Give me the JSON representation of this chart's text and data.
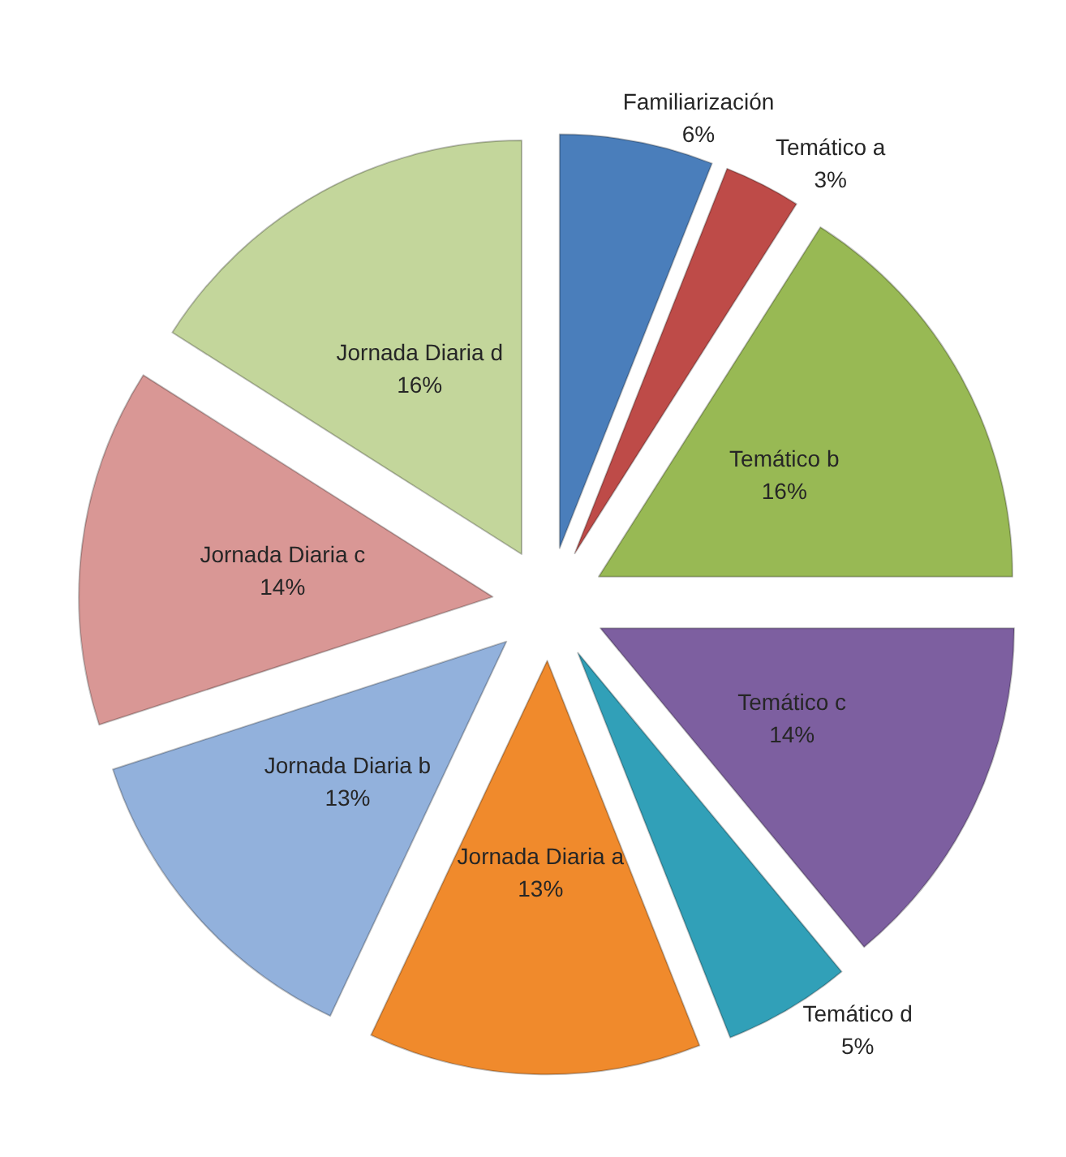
{
  "chart_data": {
    "type": "pie",
    "categories": [
      "Familiarización",
      "Temático a",
      "Temático b",
      "Temático c",
      "Temático d",
      "Jornada Diaria a",
      "Jornada Diaria b",
      "Jornada Diaria c",
      "Jornada Diaria d"
    ],
    "values": [
      6,
      3,
      16,
      14,
      5,
      13,
      13,
      14,
      16
    ],
    "value_labels": [
      "6%",
      "3%",
      "16%",
      "14%",
      "5%",
      "13%",
      "13%",
      "14%",
      "16%"
    ],
    "colors": [
      "#4a7ebb",
      "#be4b48",
      "#98b954",
      "#7d5fa0",
      "#31a0b8",
      "#f08a2c",
      "#92b1dc",
      "#d99795",
      "#c3d69b"
    ]
  }
}
